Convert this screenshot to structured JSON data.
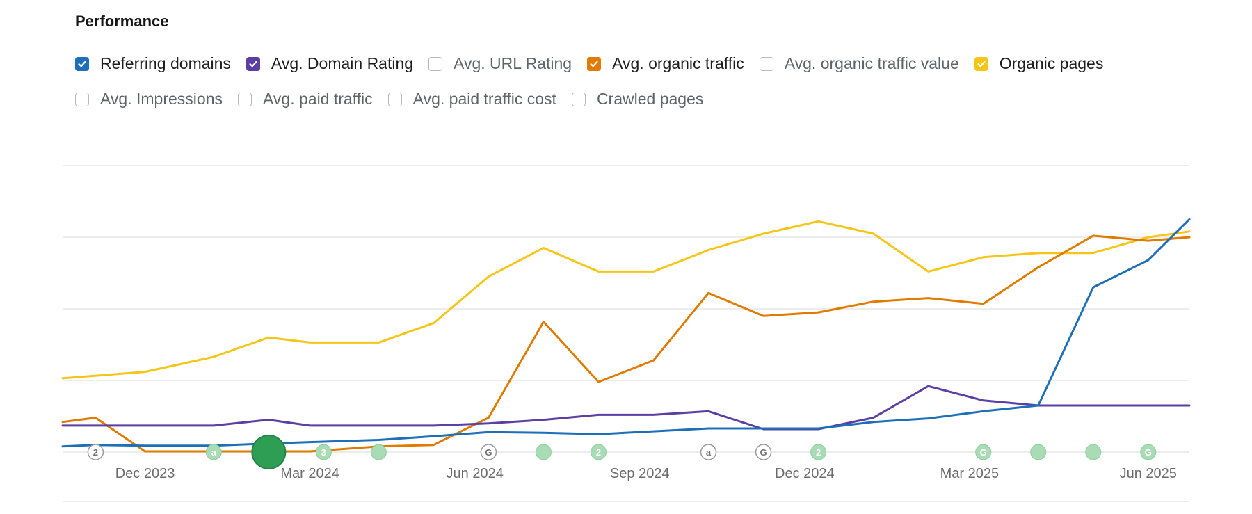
{
  "title": "Performance",
  "legend": [
    {
      "label": "Referring domains",
      "checked": true,
      "color": "#1d6fb8",
      "icon": "checkbox-icon"
    },
    {
      "label": "Avg. Domain Rating",
      "checked": true,
      "color": "#5b3fa3",
      "icon": "checkbox-icon"
    },
    {
      "label": "Avg. URL Rating",
      "checked": false,
      "color": "",
      "icon": "checkbox-icon"
    },
    {
      "label": "Avg. organic traffic",
      "checked": true,
      "color": "#e07b00",
      "icon": "checkbox-icon"
    },
    {
      "label": "Avg. organic traffic value",
      "checked": false,
      "color": "",
      "icon": "checkbox-icon"
    },
    {
      "label": "Organic pages",
      "checked": true,
      "color": "#f5c518",
      "icon": "checkbox-icon"
    },
    {
      "label": "Avg. Impressions",
      "checked": false,
      "color": "",
      "icon": "checkbox-icon"
    },
    {
      "label": "Avg. paid traffic",
      "checked": false,
      "color": "",
      "icon": "checkbox-icon"
    },
    {
      "label": "Avg. paid traffic cost",
      "checked": false,
      "color": "",
      "icon": "checkbox-icon"
    },
    {
      "label": "Crawled pages",
      "checked": false,
      "color": "",
      "icon": "checkbox-icon"
    }
  ],
  "chart_data": {
    "type": "line",
    "xlabel": "",
    "ylabel": "",
    "xlim": [
      0,
      20.5
    ],
    "ylim": [
      0,
      4
    ],
    "grid": true,
    "x_ticks": [
      {
        "label": "Dec 2023",
        "x": 1.5
      },
      {
        "label": "Mar 2024",
        "x": 4.5
      },
      {
        "label": "Jun 2024",
        "x": 7.5
      },
      {
        "label": "Sep 2024",
        "x": 10.5
      },
      {
        "label": "Dec 2024",
        "x": 13.5
      },
      {
        "label": "Mar 2025",
        "x": 16.5
      },
      {
        "label": "Jun 2025",
        "x": 19.75
      }
    ],
    "series": [
      {
        "name": "Organic pages",
        "color": "#f5c518",
        "x": [
          0,
          1.5,
          2.75,
          3.75,
          4.5,
          5.75,
          6.75,
          7.75,
          8.75,
          9.75,
          10.75,
          11.75,
          12.75,
          13.75,
          14.75,
          15.75,
          16.75,
          17.75,
          18.75,
          19.75,
          20.5
        ],
        "y": [
          1.03,
          1.12,
          1.33,
          1.6,
          1.53,
          1.53,
          1.8,
          2.45,
          2.85,
          2.52,
          2.52,
          2.82,
          3.05,
          3.22,
          3.05,
          2.52,
          2.72,
          2.78,
          2.78,
          3.0,
          3.08
        ]
      },
      {
        "name": "Avg. organic traffic",
        "color": "#e07b00",
        "x": [
          0,
          0.6,
          1.5,
          2.75,
          3.75,
          4.5,
          5.75,
          6.75,
          7.75,
          8.75,
          9.75,
          10.75,
          11.75,
          12.75,
          13.75,
          14.75,
          15.75,
          16.75,
          17.75,
          18.75,
          19.75,
          20.5
        ],
        "y": [
          0.42,
          0.48,
          0.01,
          0.01,
          0.01,
          0.01,
          0.08,
          0.1,
          0.48,
          1.82,
          0.98,
          1.28,
          2.22,
          1.9,
          1.95,
          2.1,
          2.15,
          2.07,
          2.58,
          3.02,
          2.95,
          3.0
        ]
      },
      {
        "name": "Avg. Domain Rating",
        "color": "#5b3fa3",
        "x": [
          0,
          1.5,
          2.75,
          3.75,
          4.5,
          5.75,
          6.75,
          7.75,
          8.75,
          9.75,
          10.75,
          11.75,
          12.75,
          13.75,
          14.75,
          15.75,
          16.75,
          17.75,
          18.75,
          19.75,
          20.5
        ],
        "y": [
          0.37,
          0.37,
          0.37,
          0.45,
          0.37,
          0.37,
          0.37,
          0.4,
          0.45,
          0.52,
          0.52,
          0.57,
          0.32,
          0.32,
          0.48,
          0.92,
          0.72,
          0.65,
          0.65,
          0.65,
          0.65
        ]
      },
      {
        "name": "Referring domains",
        "color": "#1d6fb8",
        "x": [
          0,
          0.6,
          1.5,
          2.75,
          3.75,
          4.5,
          5.75,
          6.75,
          7.75,
          8.75,
          9.75,
          10.75,
          11.75,
          12.75,
          13.75,
          14.75,
          15.75,
          16.75,
          17.75,
          18.75,
          19.75,
          20.5
        ],
        "y": [
          0.08,
          0.1,
          0.09,
          0.09,
          0.12,
          0.14,
          0.17,
          0.22,
          0.28,
          0.27,
          0.25,
          0.29,
          0.33,
          0.33,
          0.33,
          0.42,
          0.47,
          0.57,
          0.65,
          2.3,
          2.68,
          3.25
        ]
      }
    ],
    "annotations": [
      {
        "x": 0.6,
        "label": "2",
        "kind": "outline"
      },
      {
        "x": 2.75,
        "label": "a",
        "kind": "light"
      },
      {
        "x": 3.75,
        "label": "",
        "kind": "big"
      },
      {
        "x": 4.75,
        "label": "3",
        "kind": "light"
      },
      {
        "x": 5.75,
        "label": "",
        "kind": "light"
      },
      {
        "x": 7.75,
        "label": "G",
        "kind": "outline"
      },
      {
        "x": 8.75,
        "label": "",
        "kind": "light"
      },
      {
        "x": 9.75,
        "label": "2",
        "kind": "light"
      },
      {
        "x": 11.75,
        "label": "a",
        "kind": "outline"
      },
      {
        "x": 12.75,
        "label": "G",
        "kind": "outline"
      },
      {
        "x": 13.75,
        "label": "2",
        "kind": "light"
      },
      {
        "x": 16.75,
        "label": "G",
        "kind": "light"
      },
      {
        "x": 17.75,
        "label": "",
        "kind": "light"
      },
      {
        "x": 18.75,
        "label": "",
        "kind": "light"
      },
      {
        "x": 19.75,
        "label": "G",
        "kind": "light"
      }
    ]
  }
}
